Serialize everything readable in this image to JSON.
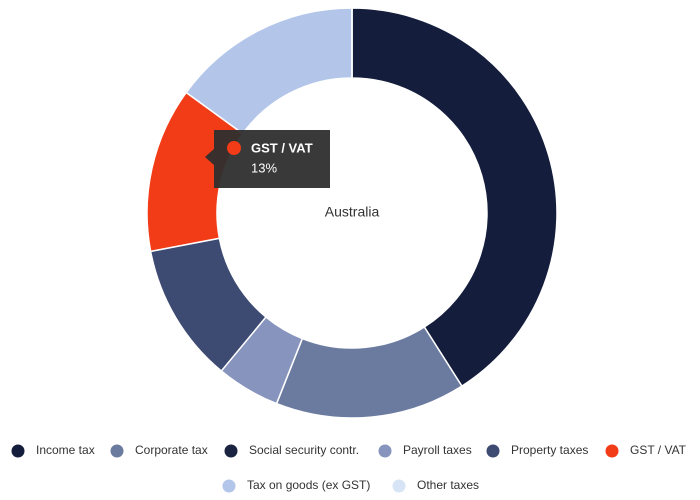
{
  "chart_data": {
    "type": "donut",
    "center_label": "Australia",
    "categories": [
      "Income tax",
      "Corporate tax",
      "Social security contr.",
      "Payroll taxes",
      "Property taxes",
      "GST / VAT",
      "Tax on goods (ex GST)",
      "Other taxes"
    ],
    "values": [
      41,
      15,
      0,
      5,
      11,
      13,
      15,
      0
    ],
    "colors": [
      "#141e3c",
      "#6b7ba0",
      "#1a2340",
      "#8794bd",
      "#3d4a72",
      "#f23b17",
      "#b3c6ea",
      "#d6e4f5"
    ],
    "tooltip": {
      "series": "GST / VAT",
      "label": "13%"
    },
    "legend": "bottom"
  }
}
